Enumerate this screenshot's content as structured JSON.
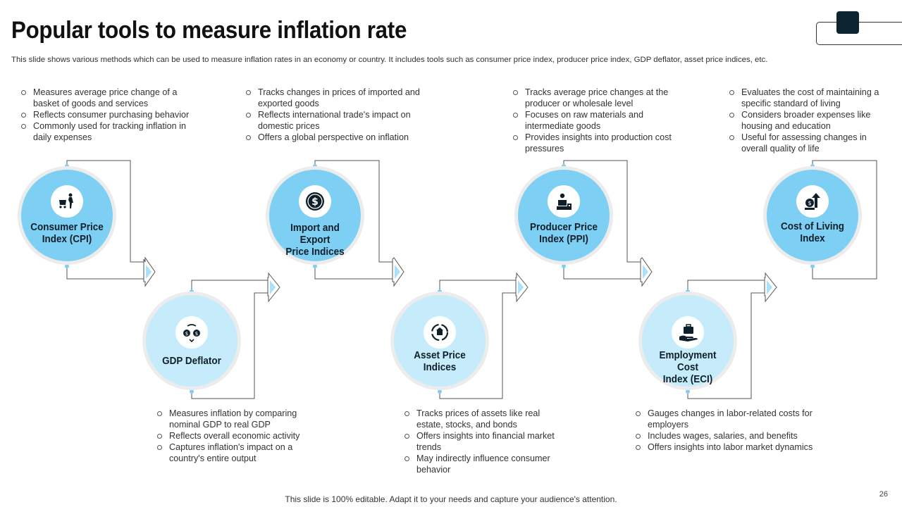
{
  "title": "Popular tools to measure inflation rate",
  "subtitle": "This slide shows various methods which can be used to measure inflation rates in an economy or country. It includes tools such as consumer price index, producer price index, GDP deflator, asset price indices, etc.",
  "tools": [
    {
      "label_line1": "Consumer Price",
      "label_line2": "Index (CPI)",
      "icon": "shopping-cart-person-icon",
      "bullets": [
        "Measures average price change of a basket of goods and services",
        "Reflects consumer purchasing behavior",
        "Commonly used for tracking inflation in daily expenses"
      ]
    },
    {
      "label_line1": "GDP Deflator",
      "label_line2": "",
      "icon": "money-exchange-icon",
      "bullets": [
        "Measures inflation by comparing nominal GDP to real GDP",
        "Reflects overall economic activity",
        "Captures inflation's impact on a country's entire output"
      ]
    },
    {
      "label_line1": "Import and Export",
      "label_line2": "Price Indices",
      "icon": "dollar-coin-icon",
      "bullets": [
        "Tracks changes in prices of imported and exported goods",
        "Reflects international trade's impact on domestic prices",
        "Offers a global perspective on inflation"
      ]
    },
    {
      "label_line1": "Asset Price",
      "label_line2": "Indices",
      "icon": "asset-cycle-icon",
      "bullets": [
        "Tracks prices of assets like real estate, stocks, and bonds",
        "Offers insights into financial market trends",
        "May indirectly influence consumer behavior"
      ]
    },
    {
      "label_line1": "Producer Price",
      "label_line2": "Index (PPI)",
      "icon": "producer-worker-icon",
      "bullets": [
        "Tracks average price changes at the producer or wholesale level",
        "Focuses on raw materials and intermediate goods",
        "Provides insights into production cost pressures"
      ]
    },
    {
      "label_line1": "Employment Cost",
      "label_line2": "Index (ECI)",
      "icon": "briefcase-hand-icon",
      "bullets": [
        "Gauges changes in labor-related costs for employers",
        "Includes wages, salaries, and benefits",
        "Offers insights into labor market dynamics"
      ]
    },
    {
      "label_line1": "Cost of Living",
      "label_line2": "Index",
      "icon": "rising-cost-icon",
      "bullets": [
        "Evaluates the cost of maintaining a specific standard of living",
        "Considers broader expenses like housing and education",
        "Useful for assessing changes in overall quality of life"
      ]
    }
  ],
  "footer": "This slide is 100% editable. Adapt it to your needs and capture your audience's attention.",
  "page_number": "26",
  "colors": {
    "dark_circle": "#7dcff3",
    "light_circle": "#c6ecfb",
    "line": "#555555",
    "arrow_fill": "#a8e2f8"
  }
}
